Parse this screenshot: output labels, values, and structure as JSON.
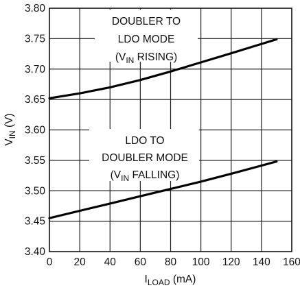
{
  "chart_data": {
    "type": "line",
    "xlabel": "I",
    "xlabel_sub": "LOAD",
    "xlabel_unit": " (mA)",
    "ylabel": "V",
    "ylabel_sub": "IN",
    "ylabel_unit": " (V)",
    "xlim": [
      0,
      160
    ],
    "ylim": [
      3.4,
      3.8
    ],
    "xticks": [
      0,
      20,
      40,
      60,
      80,
      100,
      120,
      140,
      160
    ],
    "xtick_labels": [
      "0",
      "20",
      "40",
      "60",
      "80",
      "100",
      "120",
      "140",
      "160"
    ],
    "yticks": [
      3.4,
      3.45,
      3.5,
      3.55,
      3.6,
      3.65,
      3.7,
      3.75,
      3.8
    ],
    "ytick_labels": [
      "3.40",
      "3.45",
      "3.50",
      "3.55",
      "3.60",
      "3.65",
      "3.70",
      "3.75",
      "3.80"
    ],
    "grid": true,
    "series": [
      {
        "x": [
          0,
          20,
          40,
          60,
          80,
          100,
          120,
          150
        ],
        "y": [
          3.652,
          3.66,
          3.67,
          3.682,
          3.696,
          3.711,
          3.726,
          3.749
        ]
      },
      {
        "x": [
          0,
          20,
          40,
          60,
          80,
          100,
          120,
          150
        ],
        "y": [
          3.455,
          3.467,
          3.479,
          3.491,
          3.503,
          3.515,
          3.528,
          3.548
        ]
      }
    ],
    "annotations": [
      {
        "lines": [
          {
            "text": "DOUBLER TO"
          },
          {
            "text": "LDO MODE"
          },
          {
            "pre": "(V",
            "sub": "IN",
            "post": " RISING)"
          }
        ]
      },
      {
        "lines": [
          {
            "text": "LDO TO"
          },
          {
            "text": "DOUBLER MODE"
          },
          {
            "pre": "(V",
            "sub": "IN",
            "post": " FALLING)"
          }
        ]
      }
    ]
  }
}
